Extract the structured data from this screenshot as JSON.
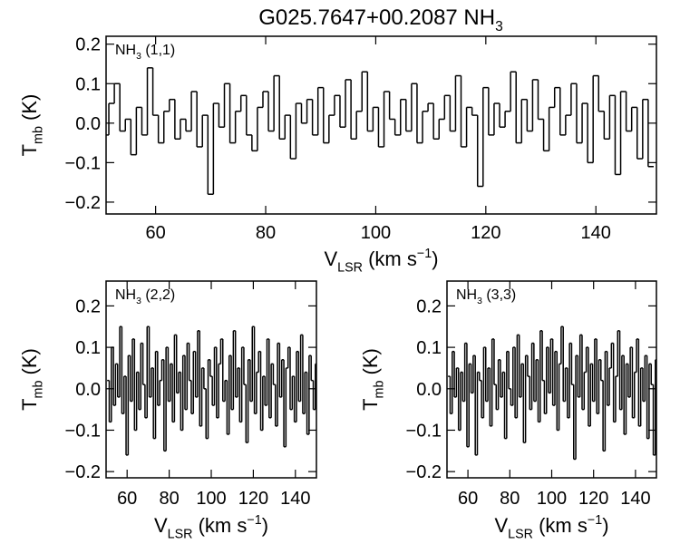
{
  "chart_data": [
    {
      "type": "line",
      "title": [
        "G025.7647+00.2087 NH",
        "3"
      ],
      "annotation": [
        "NH",
        "3",
        " (1,1)"
      ],
      "xlabel": [
        "V",
        "LSR",
        " (km s",
        "−1",
        ")"
      ],
      "ylabel": [
        "T",
        "mb",
        " (K)"
      ],
      "color": "#000000",
      "xlim": [
        51,
        151
      ],
      "ylim": [
        -0.23,
        0.22
      ],
      "xticks": [
        60,
        80,
        100,
        120,
        140
      ],
      "yticks": [
        {
          "value": -0.2,
          "label": "−0.2"
        },
        {
          "value": -0.1,
          "label": "−0.1"
        },
        {
          "value": 0,
          "label": "0.0"
        },
        0.1,
        0.2
      ],
      "x": [
        51,
        52,
        53,
        54,
        55,
        56,
        57,
        58,
        59,
        60,
        61,
        62,
        63,
        64,
        65,
        66,
        67,
        68,
        69,
        70,
        71,
        72,
        73,
        74,
        75,
        76,
        77,
        78,
        79,
        80,
        81,
        82,
        83,
        84,
        85,
        86,
        87,
        88,
        89,
        90,
        91,
        92,
        93,
        94,
        95,
        96,
        97,
        98,
        99,
        100,
        101,
        102,
        103,
        104,
        105,
        106,
        107,
        108,
        109,
        110,
        111,
        112,
        113,
        114,
        115,
        116,
        117,
        118,
        119,
        120,
        121,
        122,
        123,
        124,
        125,
        126,
        127,
        128,
        129,
        130,
        131,
        132,
        133,
        134,
        135,
        136,
        137,
        138,
        139,
        140,
        141,
        142,
        143,
        144,
        145,
        146,
        147,
        148,
        149,
        150
      ],
      "values": [
        -0.03,
        0.05,
        0.1,
        -0.02,
        0.01,
        -0.08,
        0.04,
        -0.03,
        0.14,
        0.02,
        -0.05,
        0.03,
        0.06,
        -0.04,
        0.01,
        -0.02,
        0.08,
        -0.06,
        0.02,
        -0.18,
        0.05,
        -0.01,
        0.1,
        -0.05,
        0.03,
        0.07,
        -0.03,
        -0.07,
        0.04,
        0.08,
        -0.02,
        0.12,
        -0.04,
        0.02,
        -0.09,
        0.05,
        0.0,
        0.06,
        -0.03,
        0.09,
        -0.05,
        0.02,
        0.07,
        -0.01,
        0.11,
        -0.04,
        0.03,
        0.13,
        -0.02,
        0.04,
        -0.06,
        0.08,
        0.01,
        -0.03,
        0.06,
        -0.02,
        0.1,
        -0.05,
        0.03,
        0.05,
        -0.04,
        0.01,
        0.07,
        -0.02,
        0.12,
        -0.06,
        0.04,
        0.02,
        -0.16,
        0.09,
        -0.03,
        0.05,
        -0.01,
        0.03,
        0.13,
        -0.05,
        0.06,
        -0.02,
        0.11,
        0.01,
        -0.07,
        0.04,
        0.09,
        -0.03,
        0.02,
        0.1,
        -0.05,
        0.05,
        -0.1,
        0.12,
        0.03,
        -0.04,
        0.07,
        -0.13,
        0.08,
        -0.02,
        0.04,
        -0.09,
        0.06,
        -0.11
      ]
    },
    {
      "type": "line",
      "annotation": [
        "NH",
        "3",
        " (2,2)"
      ],
      "xlabel": [
        "V",
        "LSR",
        " (km s",
        "−1",
        ")"
      ],
      "ylabel": [
        "T",
        "mb",
        " (K)"
      ],
      "color": "#000000",
      "xlim": [
        50,
        150
      ],
      "ylim": [
        -0.215,
        0.26
      ],
      "xticks": [
        60,
        80,
        100,
        120,
        140
      ],
      "yticks": [
        {
          "value": -0.2,
          "label": "−0.2"
        },
        {
          "value": -0.1,
          "label": "−0.1"
        },
        {
          "value": 0,
          "label": "0.0"
        },
        0.1,
        0.2
      ],
      "x": [
        51,
        52,
        53,
        54,
        55,
        56,
        57,
        58,
        59,
        60,
        61,
        62,
        63,
        64,
        65,
        66,
        67,
        68,
        69,
        70,
        71,
        72,
        73,
        74,
        75,
        76,
        77,
        78,
        79,
        80,
        81,
        82,
        83,
        84,
        85,
        86,
        87,
        88,
        89,
        90,
        91,
        92,
        93,
        94,
        95,
        96,
        97,
        98,
        99,
        100,
        101,
        102,
        103,
        104,
        105,
        106,
        107,
        108,
        109,
        110,
        111,
        112,
        113,
        114,
        115,
        116,
        117,
        118,
        119,
        120,
        121,
        122,
        123,
        124,
        125,
        126,
        127,
        128,
        129,
        130,
        131,
        132,
        133,
        134,
        135,
        136,
        137,
        138,
        139,
        140,
        141,
        142,
        143,
        144,
        145,
        146,
        147,
        148,
        149,
        150
      ],
      "values": [
        0.02,
        -0.08,
        0.1,
        -0.04,
        0.06,
        -0.02,
        0.15,
        -0.06,
        0.03,
        -0.16,
        0.08,
        -0.03,
        0.12,
        -0.1,
        0.04,
        -0.05,
        0.11,
        0.01,
        -0.07,
        0.15,
        -0.02,
        0.05,
        -0.12,
        0.09,
        -0.04,
        0.02,
        0.07,
        -0.15,
        0.1,
        -0.03,
        0.06,
        -0.08,
        0.13,
        -0.01,
        0.04,
        -0.1,
        0.08,
        -0.05,
        0.11,
        0.02,
        -0.06,
        0.09,
        -0.02,
        0.14,
        -0.09,
        0.05,
        0.0,
        -0.12,
        0.07,
        0.03,
        -0.04,
        0.1,
        -0.07,
        0.06,
        0.12,
        -0.03,
        0.02,
        -0.11,
        0.08,
        -0.05,
        0.14,
        -0.02,
        0.05,
        -0.08,
        0.1,
        0.01,
        -0.13,
        0.07,
        -0.03,
        0.15,
        -0.06,
        0.04,
        0.09,
        -0.1,
        0.03,
        -0.04,
        0.12,
        -0.07,
        0.06,
        0.01,
        -0.09,
        0.11,
        -0.02,
        0.07,
        -0.14,
        0.05,
        0.1,
        -0.05,
        0.03,
        -0.08,
        0.09,
        -0.03,
        0.13,
        -0.06,
        0.04,
        -0.11,
        0.08,
        0.02,
        -0.05,
        0.06
      ]
    },
    {
      "type": "line",
      "annotation": [
        "NH",
        "3",
        " (3,3)"
      ],
      "xlabel": [
        "V",
        "LSR",
        " (km s",
        "−1",
        ")"
      ],
      "ylabel": [
        "T",
        "mb",
        " (K)"
      ],
      "color": "#000000",
      "xlim": [
        50,
        150
      ],
      "ylim": [
        -0.215,
        0.26
      ],
      "xticks": [
        60,
        80,
        100,
        120,
        140
      ],
      "yticks": [
        {
          "value": -0.2,
          "label": "−0.2"
        },
        {
          "value": -0.1,
          "label": "−0.1"
        },
        {
          "value": 0,
          "label": "0.0"
        },
        0.1,
        0.2
      ],
      "x": [
        51,
        52,
        53,
        54,
        55,
        56,
        57,
        58,
        59,
        60,
        61,
        62,
        63,
        64,
        65,
        66,
        67,
        68,
        69,
        70,
        71,
        72,
        73,
        74,
        75,
        76,
        77,
        78,
        79,
        80,
        81,
        82,
        83,
        84,
        85,
        86,
        87,
        88,
        89,
        90,
        91,
        92,
        93,
        94,
        95,
        96,
        97,
        98,
        99,
        100,
        101,
        102,
        103,
        104,
        105,
        106,
        107,
        108,
        109,
        110,
        111,
        112,
        113,
        114,
        115,
        116,
        117,
        118,
        119,
        120,
        121,
        122,
        123,
        124,
        125,
        126,
        127,
        128,
        129,
        130,
        131,
        132,
        133,
        134,
        135,
        136,
        137,
        138,
        139,
        140,
        141,
        142,
        143,
        144,
        145,
        146,
        147,
        148,
        149,
        150
      ],
      "values": [
        0.03,
        -0.06,
        0.09,
        -0.02,
        0.05,
        -0.1,
        0.04,
        -0.03,
        0.11,
        -0.14,
        0.06,
        -0.01,
        0.08,
        -0.16,
        0.04,
        0.02,
        -0.07,
        0.1,
        -0.03,
        0.05,
        -0.09,
        0.12,
        0.01,
        -0.05,
        0.07,
        -0.02,
        0.04,
        -0.12,
        0.09,
        0.0,
        -0.04,
        0.1,
        -0.07,
        0.13,
        -0.02,
        0.06,
        -0.13,
        0.08,
        0.03,
        -0.05,
        0.11,
        -0.03,
        0.07,
        -0.08,
        0.14,
        0.02,
        -0.06,
        0.1,
        -0.01,
        0.12,
        -0.04,
        0.09,
        -0.1,
        0.06,
        0.15,
        -0.03,
        0.05,
        -0.07,
        0.11,
        0.01,
        -0.17,
        0.08,
        -0.02,
        0.13,
        -0.05,
        0.04,
        0.1,
        -0.09,
        0.06,
        -0.03,
        0.12,
        -0.06,
        0.07,
        0.02,
        -0.15,
        0.09,
        -0.04,
        0.05,
        0.11,
        -0.08,
        0.03,
        0.14,
        -0.05,
        0.08,
        -0.11,
        0.06,
        -0.02,
        0.1,
        -0.07,
        0.04,
        0.12,
        -0.09,
        0.05,
        -0.03,
        0.08,
        -0.12,
        0.06,
        0.01,
        -0.16,
        0.07
      ]
    }
  ]
}
